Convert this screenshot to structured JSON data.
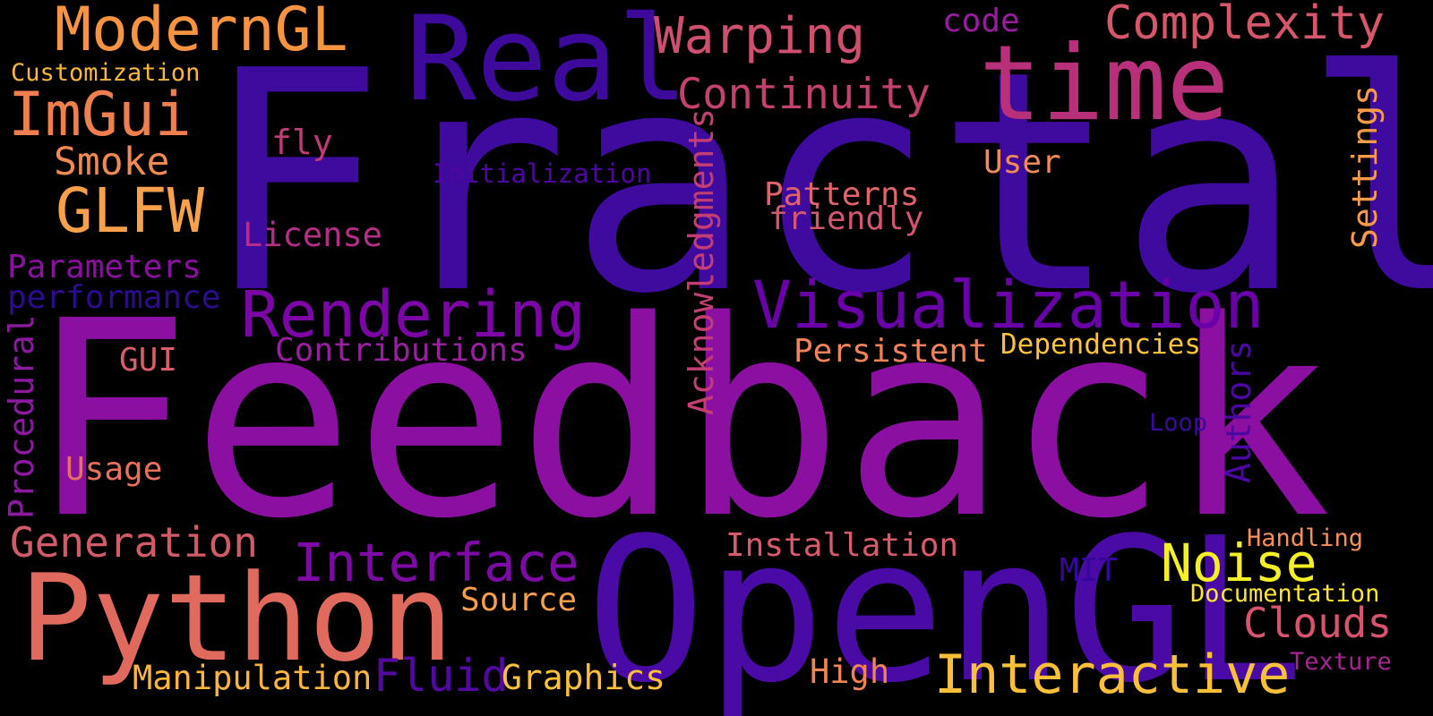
{
  "background": "#000000",
  "words": [
    {
      "text": "Fractal",
      "color": "#3f0a9e"
    },
    {
      "text": "Feedback",
      "color": "#8b0fa0"
    },
    {
      "text": "OpenGL",
      "color": "#4a0aa6"
    },
    {
      "text": "Real",
      "color": "#3d0a9c"
    },
    {
      "text": "time",
      "color": "#b8307a"
    },
    {
      "text": "Python",
      "color": "#e16a5f"
    },
    {
      "text": "Visualization",
      "color": "#6a00a8"
    },
    {
      "text": "Rendering",
      "color": "#7c05a6"
    },
    {
      "text": "Interactive",
      "color": "#fbc03a"
    },
    {
      "text": "ModernGL",
      "color": "#f89441"
    },
    {
      "text": "ImGui",
      "color": "#ef7f4f"
    },
    {
      "text": "GLFW",
      "color": "#f9a14a"
    },
    {
      "text": "Complexity",
      "color": "#d6566a"
    },
    {
      "text": "Warping",
      "color": "#cf4f6e"
    },
    {
      "text": "Continuity",
      "color": "#c4406f"
    },
    {
      "text": "Interface",
      "color": "#7d0aa5"
    },
    {
      "text": "Noise",
      "color": "#f5ef26"
    },
    {
      "text": "Generation",
      "color": "#d15b68"
    },
    {
      "text": "Smoke",
      "color": "#f08a52"
    },
    {
      "text": "Customization",
      "color": "#fbb73c"
    },
    {
      "text": "Parameters",
      "color": "#8b0fa0"
    },
    {
      "text": "performance",
      "color": "#2d0b8e"
    },
    {
      "text": "Procedural",
      "color": "#8b1aa0"
    },
    {
      "text": "Acknowledgments",
      "color": "#c53e73"
    },
    {
      "text": "Authors",
      "color": "#4b07a3"
    },
    {
      "text": "Settings",
      "color": "#f79a4a"
    },
    {
      "text": "code",
      "color": "#9a1aa2"
    },
    {
      "text": "fly",
      "color": "#bf3a76"
    },
    {
      "text": "Initialization",
      "color": "#4e06a2"
    },
    {
      "text": "License",
      "color": "#b42d86"
    },
    {
      "text": "Patterns",
      "color": "#e06469"
    },
    {
      "text": "friendly",
      "color": "#d45770"
    },
    {
      "text": "User",
      "color": "#f08a5b"
    },
    {
      "text": "Contributions",
      "color": "#9a1fa0"
    },
    {
      "text": "Persistent",
      "color": "#f0835a"
    },
    {
      "text": "Dependencies",
      "color": "#fcc23a"
    },
    {
      "text": "GUI",
      "color": "#da5d6b"
    },
    {
      "text": "Usage",
      "color": "#e8705e"
    },
    {
      "text": "Loop",
      "color": "#3a0a98"
    },
    {
      "text": "Installation",
      "color": "#d95a6a"
    },
    {
      "text": "MIT",
      "color": "#36079a"
    },
    {
      "text": "Handling",
      "color": "#f5905a"
    },
    {
      "text": "Documentation",
      "color": "#fde62f"
    },
    {
      "text": "Source",
      "color": "#f99f48"
    },
    {
      "text": "Clouds",
      "color": "#d9536d"
    },
    {
      "text": "Manipulation",
      "color": "#fbb53d"
    },
    {
      "text": "Fluid",
      "color": "#5308a4"
    },
    {
      "text": "Graphics",
      "color": "#fbbf3a"
    },
    {
      "text": "High",
      "color": "#f08455"
    },
    {
      "text": "Texture",
      "color": "#a52592"
    }
  ]
}
